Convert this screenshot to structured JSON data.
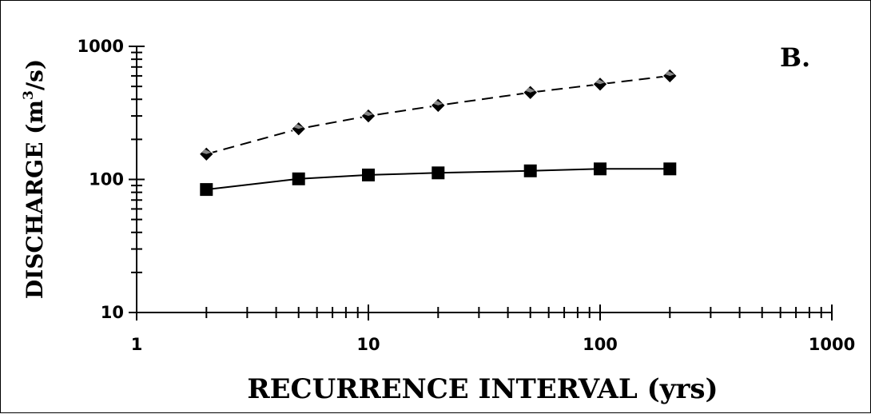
{
  "chart_data": {
    "type": "line",
    "panel_label": "B.",
    "xlabel": "RECURRENCE INTERVAL (yrs)",
    "ylabel_prefix": "DISCHARGE (m",
    "ylabel_superscript": "3",
    "ylabel_suffix": "/s)",
    "x_scale": "log",
    "y_scale": "log",
    "xlim": [
      1,
      1000
    ],
    "ylim": [
      10,
      1000
    ],
    "x_ticks": [
      1,
      10,
      100,
      1000
    ],
    "x_tick_labels": [
      "1",
      "10",
      "100",
      "1000"
    ],
    "y_ticks": [
      10,
      100,
      1000
    ],
    "y_tick_labels": [
      "10",
      "100",
      "1000"
    ],
    "grid": false,
    "legend": "none",
    "series": [
      {
        "marker": "diamond",
        "line_style": "dashed",
        "x": [
          2,
          5,
          10,
          20,
          50,
          100,
          200
        ],
        "y": [
          155,
          240,
          300,
          360,
          450,
          520,
          600
        ]
      },
      {
        "marker": "square",
        "line_style": "solid",
        "x": [
          2,
          5,
          10,
          20,
          50,
          100,
          200
        ],
        "y": [
          84,
          101,
          108,
          112,
          116,
          120,
          120
        ]
      }
    ]
  }
}
